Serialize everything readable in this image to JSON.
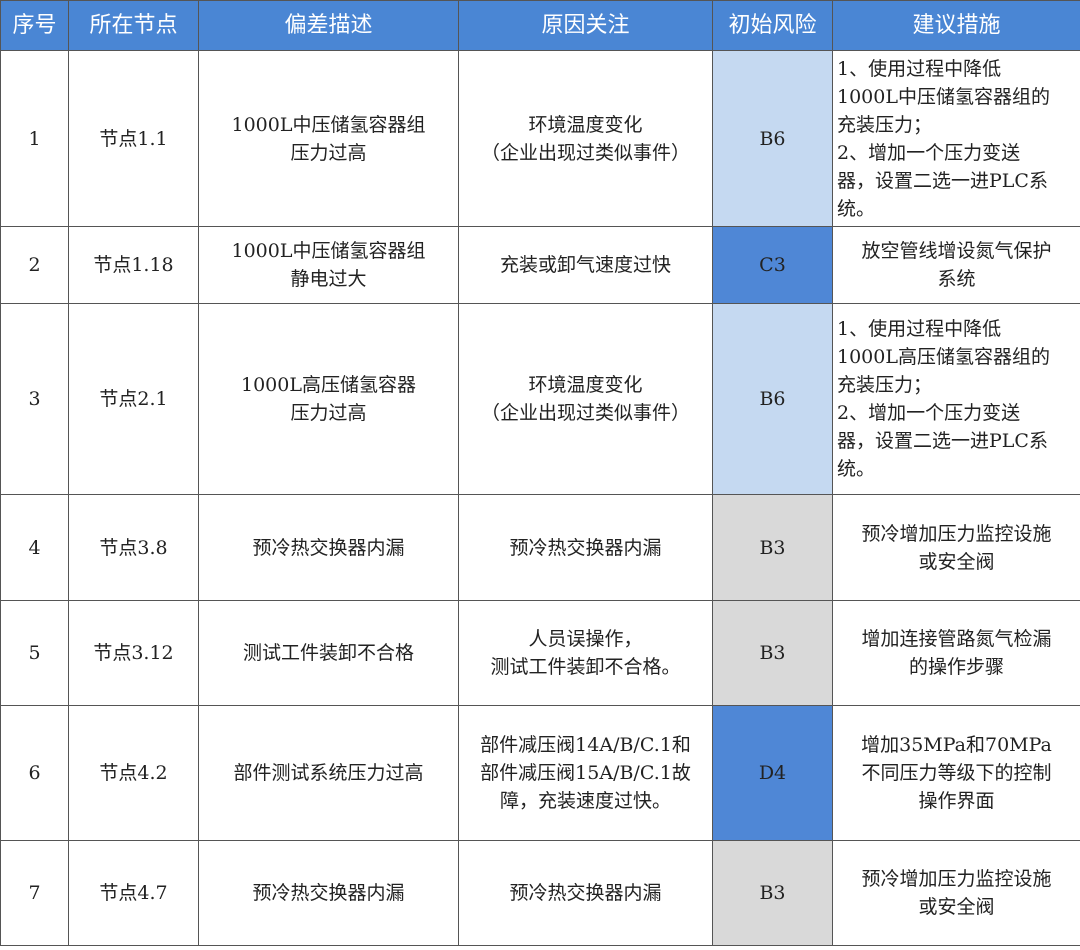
{
  "headers": [
    "序号",
    "所在节点",
    "偏差描述",
    "原因关注",
    "初始风险",
    "建议措施"
  ],
  "risk_colors": {
    "B6": "#c5d9f1",
    "C3": "#4f87d6",
    "B3": "#d9d9d9",
    "D4": "#4f87d6"
  },
  "rows": [
    {
      "no": "1",
      "node": "节点1.1",
      "deviation": "1000L中压储氢容器组\n压力过高",
      "cause": "环境温度变化\n（企业出现过类似事件）",
      "risk": "B6",
      "measure": "1、使用过程中降低\n1000L中压储氢容器组的\n充装压力；\n2、增加一个压力变送\n器，设置二选一进PLC系\n统。",
      "measure_align": "left"
    },
    {
      "no": "2",
      "node": "节点1.18",
      "deviation": "1000L中压储氢容器组\n静电过大",
      "cause": "充装或卸气速度过快",
      "risk": "C3",
      "measure": "放空管线增设氮气保护\n系统",
      "measure_align": "center"
    },
    {
      "no": "3",
      "node": "节点2.1",
      "deviation": "1000L高压储氢容器\n压力过高",
      "cause": "环境温度变化\n（企业出现过类似事件）",
      "risk": "B6",
      "measure": "1、使用过程中降低\n1000L高压储氢容器组的\n充装压力；\n2、增加一个压力变送\n器，设置二选一进PLC系\n统。",
      "measure_align": "left"
    },
    {
      "no": "4",
      "node": "节点3.8",
      "deviation": "预冷热交换器内漏",
      "cause": "预冷热交换器内漏",
      "risk": "B3",
      "measure": "预冷增加压力监控设施\n或安全阀",
      "measure_align": "center"
    },
    {
      "no": "5",
      "node": "节点3.12",
      "deviation": "测试工件装卸不合格",
      "cause": "人员误操作，\n测试工件装卸不合格。",
      "risk": "B3",
      "measure": "增加连接管路氮气检漏\n的操作步骤",
      "measure_align": "center"
    },
    {
      "no": "6",
      "node": "节点4.2",
      "deviation": "部件测试系统压力过高",
      "cause": "部件减压阀14A/B/C.1和\n部件减压阀15A/B/C.1故\n障，充装速度过快。",
      "risk": "D4",
      "measure": "增加35MPa和70MPa\n不同压力等级下的控制\n操作界面",
      "measure_align": "center"
    },
    {
      "no": "7",
      "node": "节点4.7",
      "deviation": "预冷热交换器内漏",
      "cause": "预冷热交换器内漏",
      "risk": "B3",
      "measure": "预冷增加压力监控设施\n或安全阀",
      "measure_align": "center"
    }
  ]
}
